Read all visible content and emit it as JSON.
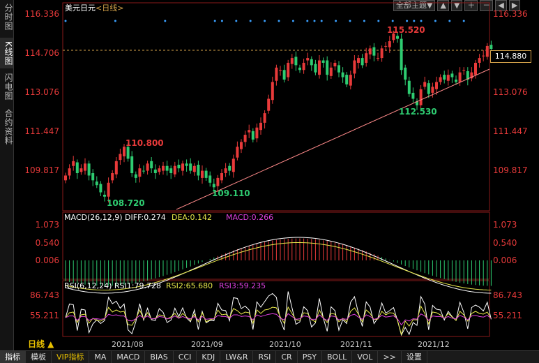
{
  "sidebar": {
    "items": [
      {
        "label": "分时图"
      },
      {
        "label": "K线图"
      },
      {
        "label": "闪电图"
      },
      {
        "label": "合约资料"
      }
    ]
  },
  "header": {
    "symbol": "美元日元",
    "period": "<日线>",
    "theme_button": "全部主题▼"
  },
  "price_axis": {
    "labels": [
      "116.336",
      "114.706",
      "113.076",
      "111.447",
      "109.817"
    ],
    "current": "114.880"
  },
  "annotations": {
    "high1": "115.520",
    "low1": "112.530",
    "high2": "110.800",
    "low2": "108.720",
    "low3": "109.110"
  },
  "macd": {
    "title": "MACD(26,12,9)",
    "diff": "DIFF:0.274",
    "dea": "DEA:0.142",
    "macd": "MACD:0.266",
    "labels": [
      "1.073",
      "0.540",
      "0.006"
    ]
  },
  "rsi": {
    "title": "RSI(6,12,24)",
    "rsi1": "RSI1:79.728",
    "rsi2": "RSI2:65.680",
    "rsi3": "RSI3:59.235",
    "labels": [
      "86.743",
      "55.211"
    ]
  },
  "x_axis": {
    "period_button": "日线 ▲",
    "months": [
      "2021/08",
      "2021/09",
      "2021/10",
      "2021/11",
      "2021/12"
    ]
  },
  "bottom_tabs": [
    "指标",
    "模板",
    "VIP指标",
    "MA",
    "MACD",
    "BIAS",
    "CCI",
    "KDJ",
    "LW&R",
    "RSI",
    "CR",
    "PSY",
    "BOLL",
    "VOL",
    ">>",
    "设置"
  ],
  "colors": {
    "up": "#e83a3a",
    "down": "#2ecc71",
    "accent": "#d4a24a"
  },
  "chart_data": {
    "type": "candlestick",
    "closes": [
      109.6,
      109.9,
      110.2,
      109.7,
      109.9,
      110.1,
      109.6,
      109.4,
      109.2,
      108.9,
      108.72,
      109.3,
      109.7,
      110.2,
      110.5,
      110.8,
      110.3,
      109.7,
      109.5,
      109.9,
      109.8,
      110.1,
      109.9,
      109.7,
      109.9,
      110.0,
      109.8,
      109.7,
      110.0,
      109.9,
      110.1,
      110.0,
      109.8,
      110.0,
      109.6,
      109.8,
      109.5,
      109.3,
      109.11,
      109.5,
      109.7,
      109.9,
      109.8,
      110.3,
      110.8,
      111.0,
      111.3,
      111.5,
      111.1,
      111.6,
      111.8,
      112.2,
      112.8,
      113.5,
      114.1,
      114.0,
      113.6,
      114.3,
      114.5,
      114.2,
      114.0,
      114.3,
      114.5,
      114.2,
      113.9,
      114.4,
      114.3,
      113.8,
      114.1,
      114.3,
      113.9,
      113.7,
      113.4,
      113.8,
      114.4,
      114.5,
      114.2,
      114.7,
      114.9,
      114.6,
      114.5,
      114.9,
      115.0,
      115.2,
      115.52,
      115.3,
      114.0,
      113.6,
      113.0,
      112.8,
      112.53,
      113.2,
      113.5,
      113.0,
      113.3,
      113.5,
      113.7,
      113.6,
      113.8,
      113.7,
      113.5,
      113.9,
      114.0,
      113.6,
      113.9,
      114.3,
      114.5,
      114.6,
      115.0,
      114.88
    ],
    "high": 115.52,
    "low": 108.72
  }
}
